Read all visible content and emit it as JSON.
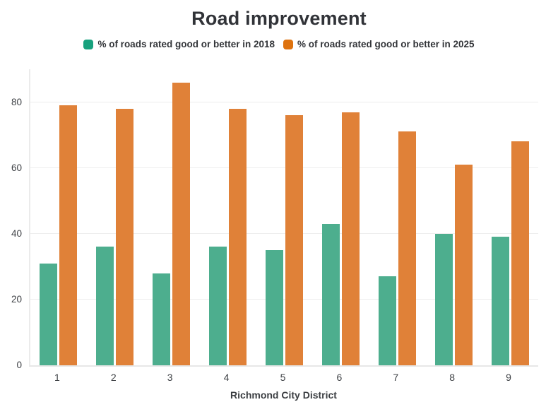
{
  "chart_data": {
    "type": "bar",
    "title": "Road improvement",
    "categories": [
      "1",
      "2",
      "3",
      "4",
      "5",
      "6",
      "7",
      "8",
      "9"
    ],
    "series": [
      {
        "name": "% of roads rated good or better in 2018",
        "bar_color": "#4dae8e",
        "legend_color": "#17a17d",
        "values": [
          31,
          36,
          28,
          36,
          35,
          43,
          27,
          40,
          39
        ]
      },
      {
        "name": "% of roads rated good or better in 2025",
        "bar_color": "#e08138",
        "legend_color": "#de720e",
        "values": [
          79,
          78,
          86,
          78,
          76,
          77,
          71,
          61,
          68
        ]
      }
    ],
    "xlabel": "Richmond City District",
    "ylabel": "",
    "ylim": [
      0,
      90
    ],
    "yticks": [
      0,
      20,
      40,
      60,
      80
    ],
    "grid": true,
    "legend_position": "top",
    "colors": {
      "title_text": "#313338",
      "legend_text": "#323438",
      "tick_text": "#3e4145",
      "gridline": "#ededed",
      "axis_line": "#e9e9e9",
      "background": "#ffffff"
    }
  }
}
